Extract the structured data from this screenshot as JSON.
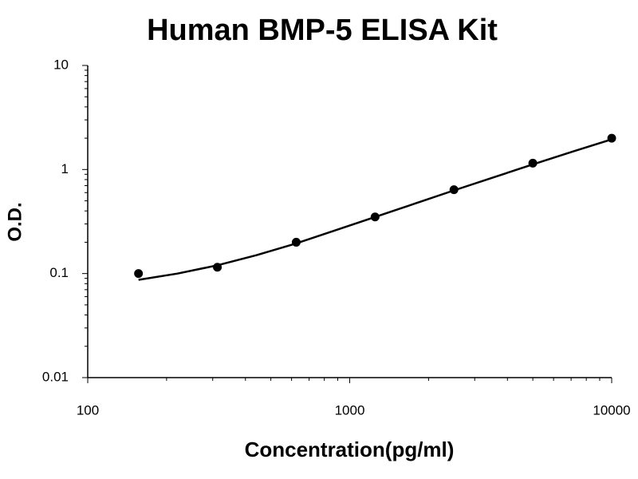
{
  "chart_data": {
    "type": "scatter",
    "title": "Human BMP-5 ELISA Kit",
    "x_label": "Concentration(pg/ml)",
    "y_label": "O.D.",
    "x_scale": "log",
    "y_scale": "log",
    "grid": false,
    "xlim": [
      100,
      10000
    ],
    "xticks": [
      100,
      1000,
      10000
    ],
    "ylim": [
      0.01,
      10
    ],
    "yticks": [
      0.01,
      0.1,
      1,
      10
    ],
    "series": [
      {
        "type": "scatter",
        "color": "#000000",
        "x": [
          156.25,
          312.5,
          625,
          1250,
          2500,
          5000,
          10000
        ],
        "values": [
          0.1,
          0.115,
          0.2,
          0.35,
          0.64,
          1.15,
          2.0
        ]
      },
      {
        "type": "line",
        "color": "#000000",
        "x": [
          156.25,
          220,
          312.5,
          440,
          625,
          880,
          1250,
          1770,
          2500,
          3540,
          5000,
          7070,
          10000
        ],
        "values": [
          0.087,
          0.1,
          0.12,
          0.15,
          0.195,
          0.26,
          0.35,
          0.47,
          0.63,
          0.84,
          1.12,
          1.48,
          1.95
        ]
      }
    ]
  }
}
